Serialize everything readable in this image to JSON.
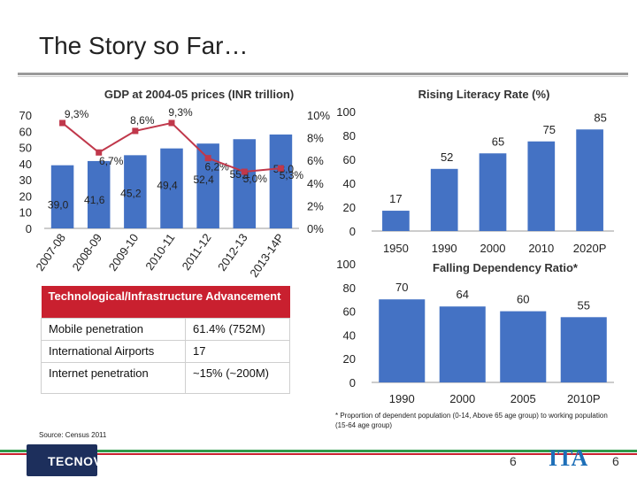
{
  "slide": {
    "title": "The Story so Far…",
    "source": "Source: Census 2011",
    "page_number": "6",
    "footer_logo_left": "TECNOVA",
    "footer_logo_right": "ITA"
  },
  "tech_table": {
    "heading": "Technological/Infrastructure Advancement",
    "rows": [
      {
        "label": "Mobile penetration",
        "value": "61.4% (752M)"
      },
      {
        "label": "International Airports",
        "value": "17"
      },
      {
        "label": "Internet penetration",
        "value": "~15% (~200M)"
      }
    ]
  },
  "footnote": "* Proportion of dependent population (0-14, Above 65 age group) to working population (15-64 age group)",
  "colors": {
    "bar": "#4472c4",
    "line": "#c0384b",
    "header_red": "#c9202f"
  },
  "chart_data": [
    {
      "type": "bar+line",
      "title": "GDP at 2004-05 prices (INR trillion)",
      "categories": [
        "2007-08",
        "2008-09",
        "2009-10",
        "2010-11",
        "2011-12",
        "2012-13",
        "2013-14P"
      ],
      "series": [
        {
          "type": "bar",
          "axis": "left",
          "values": [
            39.0,
            41.6,
            45.2,
            49.4,
            52.4,
            55.1,
            58.0
          ],
          "labels": [
            "39,0",
            "41,6",
            "45,2",
            "49,4",
            "52,4",
            "55,1",
            "58,0"
          ]
        },
        {
          "type": "line",
          "axis": "right",
          "values": [
            9.3,
            6.7,
            8.6,
            9.3,
            6.2,
            5.0,
            5.3
          ],
          "labels": [
            "9,3%",
            "6,7%",
            "8,6%",
            "9,3%",
            "6,2%",
            "5,0%",
            "5,3%"
          ]
        }
      ],
      "ylim": [
        0,
        70
      ],
      "yticks": [
        "0",
        "10",
        "20",
        "30",
        "40",
        "50",
        "60",
        "70"
      ],
      "y2lim": [
        0,
        10
      ],
      "y2ticks": [
        "0%",
        "2%",
        "4%",
        "6%",
        "8%",
        "10%"
      ]
    },
    {
      "type": "bar",
      "title": "Rising Literacy Rate (%)",
      "categories": [
        "1950",
        "1990",
        "2000",
        "2010",
        "2020P"
      ],
      "values": [
        17,
        52,
        65,
        75,
        85
      ],
      "ylim": [
        0,
        100
      ],
      "yticks": [
        "0",
        "20",
        "40",
        "60",
        "80",
        "100"
      ]
    },
    {
      "type": "bar",
      "title": "Falling Dependency Ratio*",
      "categories": [
        "1990",
        "2000",
        "2005",
        "2010P"
      ],
      "values": [
        70,
        64,
        60,
        55
      ],
      "ylim": [
        0,
        100
      ],
      "yticks": [
        "0",
        "20",
        "40",
        "60",
        "80",
        "100"
      ]
    }
  ]
}
